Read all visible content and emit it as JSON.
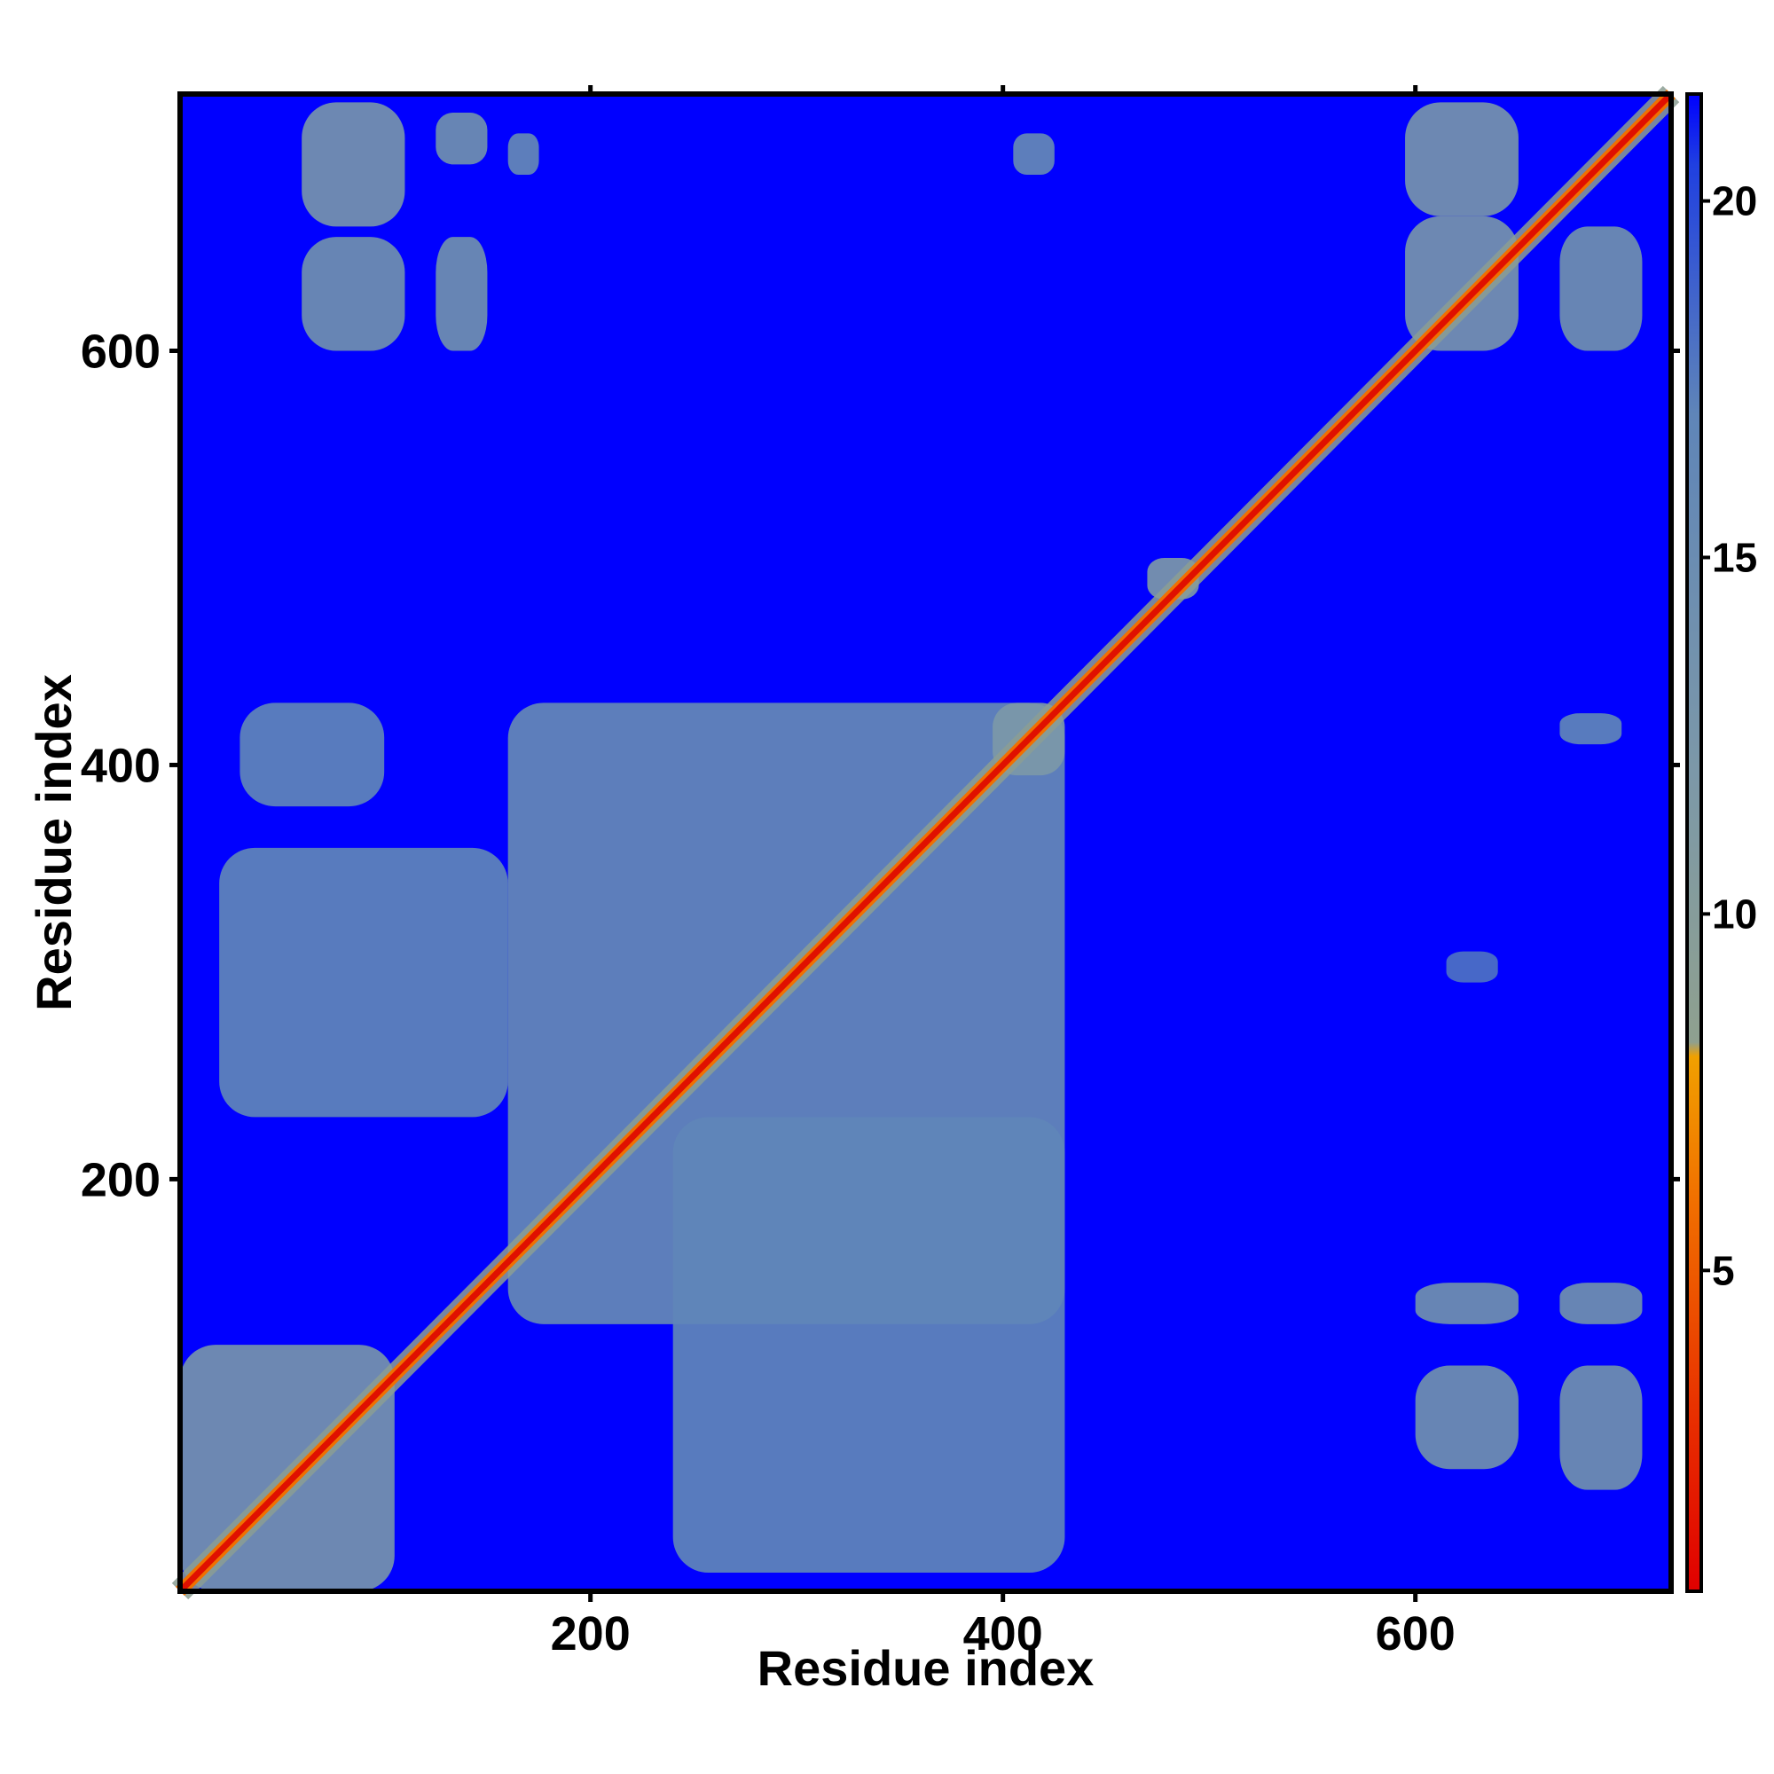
{
  "chart_data": {
    "type": "heatmap",
    "title": "",
    "xlabel": "Residue index",
    "ylabel": "Residue index",
    "x_ticks": [
      200,
      400,
      600
    ],
    "y_ticks": [
      200,
      400,
      600
    ],
    "x_tick_labels": [
      "200",
      "400",
      "600"
    ],
    "y_tick_labels": [
      "200",
      "400",
      "600"
    ],
    "xlim": [
      1,
      724
    ],
    "ylim": [
      1,
      724
    ],
    "colorbar": {
      "ticks": [
        5,
        10,
        15,
        20
      ],
      "tick_labels": [
        "5",
        "10",
        "15",
        "20"
      ],
      "range": [
        0.5,
        21.5
      ],
      "stops": [
        {
          "value": 0.5,
          "color": "#e00000"
        },
        {
          "value": 3.0,
          "color": "#e83000"
        },
        {
          "value": 6.0,
          "color": "#f07000"
        },
        {
          "value": 8.0,
          "color": "#f0a000"
        },
        {
          "value": 8.2,
          "color": "#8fa08f"
        },
        {
          "value": 12.0,
          "color": "#7c98a8"
        },
        {
          "value": 17.0,
          "color": "#5f85b8"
        },
        {
          "value": 20.5,
          "color": "#2040e0"
        },
        {
          "value": 21.5,
          "color": "#0000ff"
        }
      ]
    },
    "background_value": 21,
    "background_color": "#0000ff",
    "diagonal": {
      "value": 2,
      "color": "#e01000"
    },
    "contact_blocks": [
      {
        "x": [
          1,
          105
        ],
        "y": [
          1,
          120
        ],
        "value": 13
      },
      {
        "x": [
          60,
          110
        ],
        "y": [
          660,
          720
        ],
        "value": 13
      },
      {
        "x": [
          60,
          110
        ],
        "y": [
          600,
          655
        ],
        "value": 14
      },
      {
        "x": [
          125,
          150
        ],
        "y": [
          600,
          655
        ],
        "value": 14
      },
      {
        "x": [
          125,
          150
        ],
        "y": [
          690,
          715
        ],
        "value": 14
      },
      {
        "x": [
          160,
          175
        ],
        "y": [
          685,
          705
        ],
        "value": 16
      },
      {
        "x": [
          405,
          425
        ],
        "y": [
          685,
          705
        ],
        "value": 16
      },
      {
        "x": [
          160,
          430
        ],
        "y": [
          130,
          430
        ],
        "value": 16
      },
      {
        "x": [
          20,
          160
        ],
        "y": [
          230,
          360
        ],
        "value": 17
      },
      {
        "x": [
          240,
          430
        ],
        "y": [
          10,
          230
        ],
        "value": 17
      },
      {
        "x": [
          30,
          100
        ],
        "y": [
          380,
          430
        ],
        "value": 17
      },
      {
        "x": [
          595,
          650
        ],
        "y": [
          665,
          720
        ],
        "value": 13
      },
      {
        "x": [
          595,
          650
        ],
        "y": [
          600,
          665
        ],
        "value": 13
      },
      {
        "x": [
          670,
          710
        ],
        "y": [
          600,
          660
        ],
        "value": 14
      },
      {
        "x": [
          600,
          650
        ],
        "y": [
          130,
          150
        ],
        "value": 14
      },
      {
        "x": [
          600,
          650
        ],
        "y": [
          60,
          110
        ],
        "value": 14
      },
      {
        "x": [
          670,
          710
        ],
        "y": [
          130,
          150
        ],
        "value": 14
      },
      {
        "x": [
          670,
          710
        ],
        "y": [
          50,
          110
        ],
        "value": 14
      },
      {
        "x": [
          670,
          700
        ],
        "y": [
          410,
          425
        ],
        "value": 17
      },
      {
        "x": [
          615,
          640
        ],
        "y": [
          295,
          310
        ],
        "value": 18
      },
      {
        "x": [
          470,
          495
        ],
        "y": [
          480,
          500
        ],
        "value": 12
      },
      {
        "x": [
          395,
          430
        ],
        "y": [
          395,
          430
        ],
        "value": 12
      }
    ]
  }
}
